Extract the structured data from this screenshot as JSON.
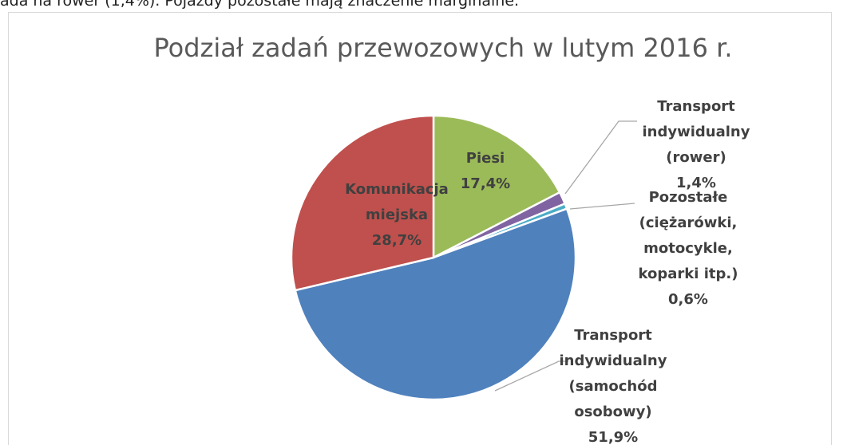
{
  "page_text": "ada na rower (1,4%). Pojazdy pozostałe mają znaczenie marginalne.",
  "chart_data": {
    "type": "pie",
    "title": "Podział zadań przewozowych w lutym 2016 r.",
    "categories": [
      "Piesi",
      "Transport indywidualny (rower)",
      "Pozostałe (ciężarówki, motocykle, koparki itp.)",
      "Transport indywidualny (samochód osobowy)",
      "Komunikacja miejska"
    ],
    "values": [
      17.4,
      1.4,
      0.6,
      51.9,
      28.7
    ],
    "value_labels": [
      "17,4%",
      "1,4%",
      "0,6%",
      "51,9%",
      "28,7%"
    ],
    "colors": [
      "#9bbb59",
      "#8064a2",
      "#4bacc6",
      "#4f81bd",
      "#c0504d"
    ]
  }
}
